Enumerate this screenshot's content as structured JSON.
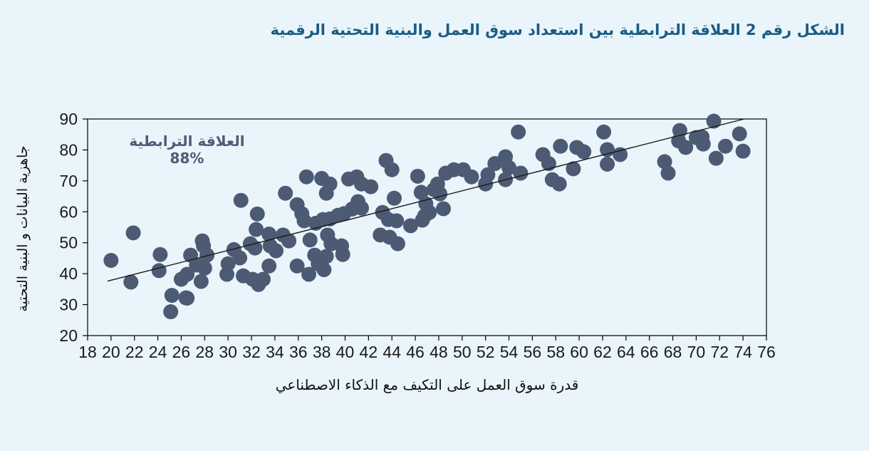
{
  "title": {
    "text": "الشكل رقم 2 العلاقة الترابطية بين استعداد سوق العمل والبنية التحتية الرقمية"
  },
  "colors": {
    "background": "#e9f4fb",
    "title": "#1a5c82",
    "annotation": "#4d5c77",
    "dot": "#4c5b73",
    "trendline": "#1a1a1a",
    "axis": "#000000",
    "tick_text": "#1a1a1a"
  },
  "chart_data": {
    "type": "scatter",
    "title": "الشكل رقم 2 العلاقة الترابطية بين استعداد سوق العمل والبنية التحتية الرقمية",
    "annotation": "العلاقة الترابطية %88",
    "correlation": "88%",
    "xlabel": "قدرة سوق العمل على التكيف مع الذكاء الاصطناعي",
    "ylabel": "جاهزية البيانات و البنية التحتية",
    "xlim": [
      18,
      76
    ],
    "ylim": [
      20,
      90
    ],
    "x_tick_step": 2,
    "y_tick_step": 10,
    "grid": false,
    "legend": "none",
    "trendline": {
      "x1": 19.7,
      "y1": 37.6,
      "x2": 74.1,
      "y2": 90.0
    },
    "points": [
      [
        20.0,
        44.3
      ],
      [
        21.9,
        53.2
      ],
      [
        21.7,
        37.3
      ],
      [
        24.2,
        46.2
      ],
      [
        24.1,
        41.0
      ],
      [
        25.2,
        33.0
      ],
      [
        26.5,
        32.1
      ],
      [
        25.1,
        27.7
      ],
      [
        26.4,
        32.2
      ],
      [
        26.0,
        38.2
      ],
      [
        26.5,
        39.8
      ],
      [
        27.3,
        42.8
      ],
      [
        26.8,
        46.0
      ],
      [
        27.7,
        37.5
      ],
      [
        27.9,
        49.0
      ],
      [
        28.2,
        46.0
      ],
      [
        27.8,
        50.6
      ],
      [
        28.0,
        41.8
      ],
      [
        30.0,
        43.2
      ],
      [
        30.5,
        47.8
      ],
      [
        31.0,
        45.1
      ],
      [
        29.9,
        39.8
      ],
      [
        31.3,
        39.3
      ],
      [
        32.1,
        38.2
      ],
      [
        33.0,
        38.2
      ],
      [
        32.6,
        36.5
      ],
      [
        33.5,
        42.5
      ],
      [
        35.9,
        42.5
      ],
      [
        31.1,
        63.7
      ],
      [
        32.5,
        59.3
      ],
      [
        32.4,
        54.3
      ],
      [
        33.5,
        52.8
      ],
      [
        34.7,
        52.5
      ],
      [
        35.2,
        50.6
      ],
      [
        31.9,
        49.7
      ],
      [
        32.3,
        48.3
      ],
      [
        33.6,
        49.0
      ],
      [
        34.1,
        47.4
      ],
      [
        34.9,
        66.0
      ],
      [
        35.9,
        62.3
      ],
      [
        36.3,
        59.4
      ],
      [
        36.5,
        57.1
      ],
      [
        37.5,
        56.3
      ],
      [
        38.1,
        57.5
      ],
      [
        38.7,
        57.7
      ],
      [
        39.4,
        58.9
      ],
      [
        39.9,
        59.4
      ],
      [
        40.6,
        60.9
      ],
      [
        41.4,
        61.2
      ],
      [
        36.7,
        71.3
      ],
      [
        38.0,
        70.8
      ],
      [
        38.7,
        69.0
      ],
      [
        38.4,
        66.0
      ],
      [
        37.0,
        50.9
      ],
      [
        38.5,
        52.5
      ],
      [
        38.8,
        49.7
      ],
      [
        39.7,
        49.0
      ],
      [
        39.8,
        46.2
      ],
      [
        38.4,
        45.6
      ],
      [
        37.4,
        46.0
      ],
      [
        37.7,
        43.2
      ],
      [
        38.2,
        41.3
      ],
      [
        36.9,
        39.8
      ],
      [
        40.3,
        70.6
      ],
      [
        41.0,
        71.3
      ],
      [
        41.4,
        69.0
      ],
      [
        42.2,
        68.1
      ],
      [
        41.1,
        63.3
      ],
      [
        43.2,
        59.8
      ],
      [
        43.7,
        57.5
      ],
      [
        44.4,
        57.1
      ],
      [
        43.0,
        52.5
      ],
      [
        43.8,
        51.8
      ],
      [
        44.5,
        49.7
      ],
      [
        45.6,
        55.5
      ],
      [
        46.6,
        57.3
      ],
      [
        43.5,
        76.6
      ],
      [
        44.0,
        73.6
      ],
      [
        46.2,
        71.5
      ],
      [
        46.5,
        66.3
      ],
      [
        44.2,
        64.4
      ],
      [
        46.8,
        58.7
      ],
      [
        48.4,
        61.0
      ],
      [
        47.2,
        59.8
      ],
      [
        48.1,
        65.8
      ],
      [
        47.6,
        67.2
      ],
      [
        46.9,
        62.6
      ],
      [
        47.9,
        69.0
      ],
      [
        48.6,
        72.5
      ],
      [
        49.3,
        73.6
      ],
      [
        50.1,
        73.6
      ],
      [
        50.8,
        71.3
      ],
      [
        52.0,
        69.0
      ],
      [
        52.2,
        72.0
      ],
      [
        52.8,
        75.6
      ],
      [
        53.7,
        77.8
      ],
      [
        54.0,
        74.3
      ],
      [
        53.7,
        70.4
      ],
      [
        55.0,
        72.5
      ],
      [
        54.8,
        85.8
      ],
      [
        56.9,
        78.5
      ],
      [
        57.4,
        75.6
      ],
      [
        57.7,
        70.4
      ],
      [
        58.3,
        69.0
      ],
      [
        58.4,
        81.2
      ],
      [
        59.8,
        80.8
      ],
      [
        60.4,
        79.4
      ],
      [
        59.5,
        73.9
      ],
      [
        62.1,
        85.8
      ],
      [
        62.4,
        80.1
      ],
      [
        62.4,
        75.4
      ],
      [
        63.5,
        78.5
      ],
      [
        67.3,
        76.2
      ],
      [
        67.6,
        72.5
      ],
      [
        68.6,
        86.3
      ],
      [
        68.5,
        82.9
      ],
      [
        69.1,
        80.8
      ],
      [
        70.0,
        84.0
      ],
      [
        70.5,
        84.2
      ],
      [
        70.6,
        81.9
      ],
      [
        71.5,
        89.3
      ],
      [
        71.7,
        77.3
      ],
      [
        72.5,
        81.2
      ],
      [
        73.7,
        85.2
      ],
      [
        74.0,
        79.6
      ]
    ]
  }
}
